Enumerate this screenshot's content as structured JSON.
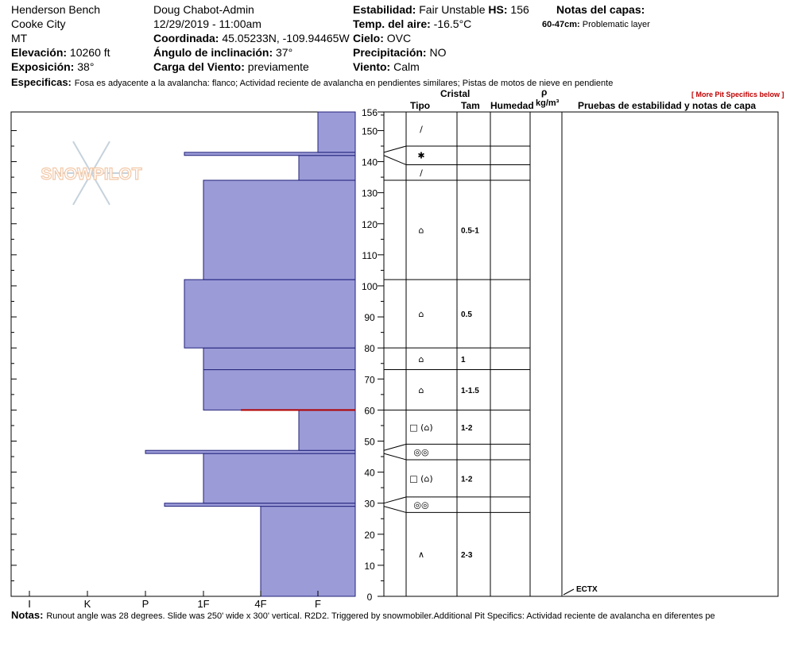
{
  "header": {
    "location": "Henderson Bench",
    "region": "Cooke City",
    "state": "MT",
    "elevation_label": "Elevación:",
    "elevation_value": "10260 ft",
    "aspect_label": "Exposición:",
    "aspect_value": "38°",
    "observer": "Doug Chabot-Admin",
    "datetime": "12/29/2019 - 11:00am",
    "coord_label": "Coordinada:",
    "coord_value": "45.05233N, -109.94465W",
    "slope_label": "Ángulo de inclinación:",
    "slope_value": "37°",
    "wind_load_label": "Carga del Viento:",
    "wind_load_value": "previamente",
    "stability_label": "Estabilidad:",
    "stability_value": "Fair Unstable",
    "hs_label": "HS:",
    "hs_value": "156",
    "air_temp_label": "Temp. del aire:",
    "air_temp_value": "-16.5°C",
    "sky_label": "Cielo:",
    "sky_value": "OVC",
    "precip_label": "Precipitación:",
    "precip_value": "NO",
    "wind_label": "Viento:",
    "wind_value": "Calm",
    "layer_notes_label": "Notas del capas:",
    "layer_note_range": "60-47cm:",
    "layer_note_text": "Problematic layer",
    "specifics_label": "Especificas:",
    "specifics_text": "Fosa es adyacente a la avalancha: flanco;  Actividad reciente de avalancha en pendientes similares;  Pistas de motos de nieve en pendiente",
    "more_specifics_link": "[ More Pit Specifics below ]"
  },
  "columns": {
    "cristal": "Cristal",
    "tipo": "Tipo",
    "tam": "Tam",
    "humedad": "Humedad",
    "rho": "ρ",
    "density_unit": "kg/m³",
    "tests": "Pruebas de estabilidad y notas de capa"
  },
  "logo": {
    "text": "SNOWPILOT",
    "color": "#f2c8a8"
  },
  "colors": {
    "layer_fill": "#9b9bd8",
    "layer_stroke": "#20207a",
    "weak_layer": "#b00000"
  },
  "test_result": "ECTX",
  "notes_label": "Notas:",
  "notes_text": "Runout angle was 28 degrees. Slide was 250' wide x 300' vertical. R2D2. Triggered by snowmobiler.Additional Pit Specifics: Actividad reciente de avalancha en diferentes pe",
  "chart_data": {
    "type": "bar",
    "orientation": "horizontal-layers",
    "y_axis": {
      "range": [
        0,
        156
      ],
      "ticks": [
        0,
        10,
        20,
        30,
        40,
        50,
        60,
        70,
        80,
        90,
        100,
        110,
        120,
        130,
        140,
        150,
        156
      ]
    },
    "hardness_scale": [
      "I",
      "K",
      "P",
      "1F",
      "4F",
      "F"
    ],
    "weak_layer_depth": 60,
    "layers": [
      {
        "bottom": 0,
        "top": 29,
        "hardness": "4F"
      },
      {
        "bottom": 29,
        "top": 30,
        "hardness": "P-"
      },
      {
        "bottom": 30,
        "top": 46,
        "hardness": "1F"
      },
      {
        "bottom": 46,
        "top": 47,
        "hardness": "P"
      },
      {
        "bottom": 47,
        "top": 60,
        "hardness": "F+"
      },
      {
        "bottom": 60,
        "top": 73,
        "hardness": "1F"
      },
      {
        "bottom": 73,
        "top": 80,
        "hardness": "1F"
      },
      {
        "bottom": 80,
        "top": 102,
        "hardness": "1F+"
      },
      {
        "bottom": 102,
        "top": 134,
        "hardness": "1F"
      },
      {
        "bottom": 134,
        "top": 142,
        "hardness": "F+"
      },
      {
        "bottom": 142,
        "top": 143,
        "hardness": "1F+"
      },
      {
        "bottom": 143,
        "top": 156,
        "hardness": "F"
      }
    ],
    "crystal_rows": [
      {
        "bottom": 27,
        "top": 32,
        "type": "◎◎",
        "size": ""
      },
      {
        "bottom": 32,
        "top": 44,
        "type": "□ (⌂)",
        "size": "1-2"
      },
      {
        "bottom": 44,
        "top": 49,
        "type": "◎◎",
        "size": ""
      },
      {
        "bottom": 49,
        "top": 60,
        "type": "□ (⌂)",
        "size": "1-2"
      },
      {
        "bottom": 60,
        "top": 73,
        "type": "⌂",
        "size": "1-1.5"
      },
      {
        "bottom": 73,
        "top": 80,
        "type": "⌂",
        "size": "1"
      },
      {
        "bottom": 80,
        "top": 102,
        "type": "⌂",
        "size": "0.5"
      },
      {
        "bottom": 102,
        "top": 134,
        "type": "⌂",
        "size": "0.5-1"
      },
      {
        "bottom": 134,
        "top": 139,
        "type": "/",
        "size": ""
      },
      {
        "bottom": 139,
        "top": 145,
        "type": "✱",
        "size": ""
      },
      {
        "bottom": 145,
        "top": 156,
        "type": "/",
        "size": ""
      }
    ],
    "bottom_row": {
      "bottom": 0,
      "top": 27,
      "type": "∧",
      "size": "2-3"
    }
  }
}
